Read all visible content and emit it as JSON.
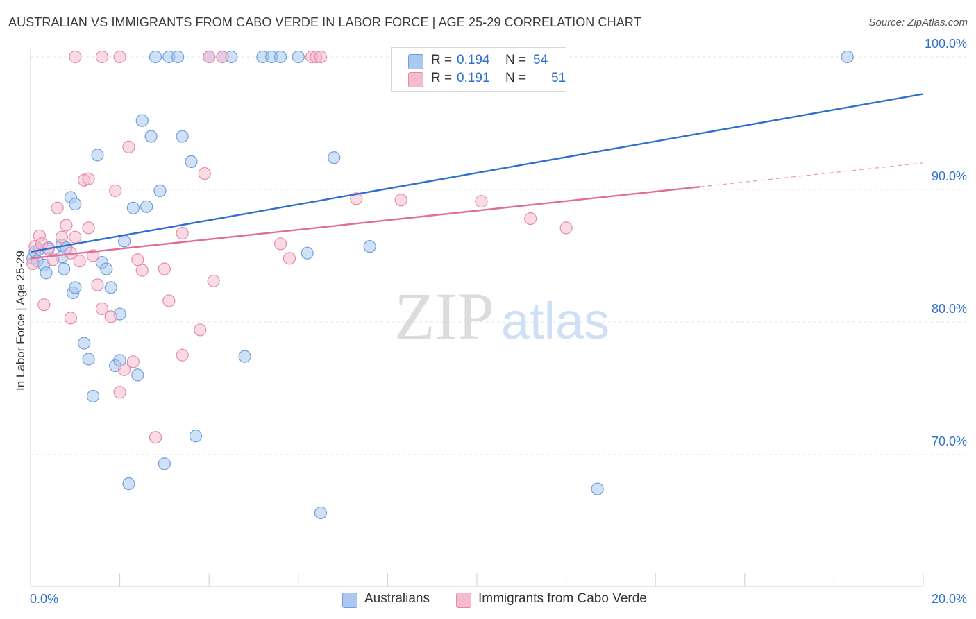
{
  "title": "AUSTRALIAN VS IMMIGRANTS FROM CABO VERDE IN LABOR FORCE | AGE 25-29 CORRELATION CHART",
  "source": "Source: ZipAtlas.com",
  "watermark": {
    "zip": "ZIP",
    "atlas": "atlas"
  },
  "colors": {
    "blue_fill": "#aac8f0",
    "blue_stroke": "#6e9fdc",
    "blue_line": "#2f6fd0",
    "pink_fill": "#f6bccd",
    "pink_stroke": "#e58aa8",
    "pink_line": "#e36b96",
    "value_text": "#2f6fd0",
    "grid": "#e3e3e3"
  },
  "legend_top": [
    {
      "r_label": "R =",
      "r_value": "0.194",
      "n_label": "N =",
      "n_value": "54",
      "series": "blue"
    },
    {
      "r_label": "R =",
      "r_value": "0.191",
      "n_label": "N =",
      "n_value": "51",
      "series": "pink"
    }
  ],
  "legend_bottom": [
    {
      "label": "Australians",
      "series": "blue"
    },
    {
      "label": "Immigrants from Cabo Verde",
      "series": "pink"
    }
  ],
  "chart_data": {
    "type": "scatter",
    "title": "AUSTRALIAN VS IMMIGRANTS FROM CABO VERDE IN LABOR FORCE | AGE 25-29 CORRELATION CHART",
    "xlabel": "",
    "ylabel": "In Labor Force | Age 25-29",
    "xlim": [
      0,
      20
    ],
    "ylim": [
      61,
      104
    ],
    "x_tick_labels": [
      {
        "value": 0,
        "label": "0.0%"
      },
      {
        "value": 20,
        "label": "20.0%"
      }
    ],
    "y_tick_labels": [
      {
        "value": 100,
        "label": "100.0%"
      },
      {
        "value": 90,
        "label": "90.0%"
      },
      {
        "value": 80,
        "label": "80.0%"
      },
      {
        "value": 70,
        "label": "70.0%"
      }
    ],
    "grid": true,
    "legend_placement": "top-center",
    "series": [
      {
        "name": "Australians",
        "color": "blue",
        "R": 0.194,
        "N": 54,
        "trend": {
          "x": [
            0,
            20
          ],
          "y": [
            85.3,
            97.2
          ],
          "dashed_from": null
        },
        "points": [
          [
            0.05,
            84.8
          ],
          [
            0.1,
            85.3
          ],
          [
            0.15,
            84.6
          ],
          [
            0.2,
            85.5
          ],
          [
            0.3,
            84.3
          ],
          [
            0.35,
            83.7
          ],
          [
            0.4,
            85.6
          ],
          [
            0.7,
            84.9
          ],
          [
            0.7,
            85.8
          ],
          [
            0.75,
            84.0
          ],
          [
            0.8,
            85.6
          ],
          [
            0.9,
            89.4
          ],
          [
            0.95,
            82.2
          ],
          [
            1.0,
            88.9
          ],
          [
            1.0,
            82.6
          ],
          [
            1.2,
            78.4
          ],
          [
            1.3,
            77.2
          ],
          [
            1.4,
            74.4
          ],
          [
            1.5,
            92.6
          ],
          [
            1.6,
            84.5
          ],
          [
            1.7,
            84.0
          ],
          [
            1.8,
            82.6
          ],
          [
            1.9,
            76.7
          ],
          [
            2.0,
            80.6
          ],
          [
            2.0,
            77.1
          ],
          [
            2.1,
            86.1
          ],
          [
            2.2,
            67.8
          ],
          [
            2.3,
            88.6
          ],
          [
            2.4,
            76.0
          ],
          [
            2.5,
            95.2
          ],
          [
            2.6,
            88.7
          ],
          [
            2.7,
            94.0
          ],
          [
            2.8,
            100.0
          ],
          [
            2.9,
            89.9
          ],
          [
            3.0,
            69.3
          ],
          [
            3.1,
            100.0
          ],
          [
            3.3,
            100.0
          ],
          [
            3.4,
            94.0
          ],
          [
            3.6,
            92.1
          ],
          [
            3.7,
            71.4
          ],
          [
            4.0,
            100.0
          ],
          [
            4.3,
            100.0
          ],
          [
            4.5,
            100.0
          ],
          [
            4.8,
            77.4
          ],
          [
            5.2,
            100.0
          ],
          [
            5.4,
            100.0
          ],
          [
            5.6,
            100.0
          ],
          [
            6.0,
            100.0
          ],
          [
            6.2,
            85.2
          ],
          [
            6.5,
            65.6
          ],
          [
            6.8,
            92.4
          ],
          [
            7.6,
            85.7
          ],
          [
            12.7,
            67.4
          ],
          [
            18.3,
            100.0
          ]
        ]
      },
      {
        "name": "Immigrants from Cabo Verde",
        "color": "pink",
        "R": 0.191,
        "N": 51,
        "trend": {
          "x": [
            0,
            20
          ],
          "y": [
            84.8,
            92.0
          ],
          "dashed_from": 15.0
        },
        "points": [
          [
            0.05,
            84.4
          ],
          [
            0.1,
            85.7
          ],
          [
            0.2,
            86.5
          ],
          [
            0.25,
            85.9
          ],
          [
            0.3,
            81.3
          ],
          [
            0.4,
            85.5
          ],
          [
            0.5,
            84.7
          ],
          [
            0.6,
            88.6
          ],
          [
            0.7,
            86.4
          ],
          [
            0.8,
            87.3
          ],
          [
            0.9,
            85.2
          ],
          [
            0.9,
            80.3
          ],
          [
            1.0,
            86.4
          ],
          [
            1.1,
            84.6
          ],
          [
            1.2,
            90.7
          ],
          [
            1.3,
            90.8
          ],
          [
            1.3,
            87.1
          ],
          [
            1.4,
            85.0
          ],
          [
            1.5,
            82.8
          ],
          [
            1.6,
            81.0
          ],
          [
            1.8,
            80.4
          ],
          [
            1.9,
            89.9
          ],
          [
            2.0,
            74.7
          ],
          [
            2.1,
            76.4
          ],
          [
            2.2,
            93.2
          ],
          [
            2.3,
            77.0
          ],
          [
            2.4,
            84.7
          ],
          [
            2.5,
            83.9
          ],
          [
            2.8,
            71.3
          ],
          [
            3.0,
            84.0
          ],
          [
            3.1,
            81.6
          ],
          [
            3.4,
            86.7
          ],
          [
            3.4,
            77.5
          ],
          [
            3.8,
            79.4
          ],
          [
            3.9,
            91.2
          ],
          [
            4.0,
            100.0
          ],
          [
            4.1,
            83.1
          ],
          [
            4.3,
            100.0
          ],
          [
            5.6,
            85.9
          ],
          [
            5.8,
            84.8
          ],
          [
            6.3,
            100.0
          ],
          [
            6.4,
            100.0
          ],
          [
            6.5,
            100.0
          ],
          [
            7.3,
            89.3
          ],
          [
            8.3,
            89.2
          ],
          [
            10.1,
            89.1
          ],
          [
            11.2,
            87.8
          ],
          [
            12.0,
            87.1
          ],
          [
            2.0,
            100.0
          ],
          [
            1.6,
            100.0
          ],
          [
            1.0,
            100.0
          ]
        ]
      }
    ]
  }
}
